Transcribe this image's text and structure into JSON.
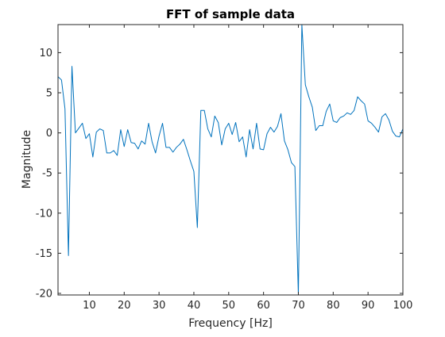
{
  "chart_data": {
    "type": "line",
    "title": "FFT of sample data",
    "xlabel": "Frequency [Hz]",
    "ylabel": "Magnitude",
    "xlim": [
      1,
      100
    ],
    "ylim": [
      -20.2,
      13.5
    ],
    "xticks": [
      10,
      20,
      30,
      40,
      50,
      60,
      70,
      80,
      90,
      100
    ],
    "yticks": [
      10,
      5,
      0,
      -5,
      -10,
      -15,
      -20
    ],
    "grid": false,
    "line_color": "#0072bd",
    "series": [
      {
        "x": [
          1,
          2,
          3,
          4,
          5,
          6,
          7,
          8,
          9,
          10,
          11,
          12,
          13,
          14,
          15,
          16,
          17,
          18,
          19,
          20,
          21,
          22,
          23,
          24,
          25,
          26,
          27,
          28,
          29,
          30,
          31,
          32,
          33,
          34,
          35,
          36,
          37,
          38,
          39,
          40,
          41,
          42,
          43,
          44,
          45,
          46,
          47,
          48,
          49,
          50,
          51,
          52,
          53,
          54,
          55,
          56,
          57,
          58,
          59,
          60,
          61,
          62,
          63,
          64,
          65,
          66,
          67,
          68,
          69,
          70,
          71,
          72,
          73,
          74,
          75,
          76,
          77,
          78,
          79,
          80,
          81,
          82,
          83,
          84,
          85,
          86,
          87,
          88,
          89,
          90,
          91,
          92,
          93,
          94,
          95,
          96,
          97,
          98,
          99,
          100
        ],
        "values": [
          7.0,
          6.6,
          3.0,
          -15.3,
          8.3,
          0.0,
          0.6,
          1.2,
          -0.7,
          -0.1,
          -3.0,
          0.1,
          0.5,
          0.3,
          -2.5,
          -2.5,
          -2.2,
          -2.8,
          0.4,
          -1.7,
          0.4,
          -1.2,
          -1.3,
          -2.0,
          -1.0,
          -1.4,
          1.2,
          -1.1,
          -2.5,
          -0.4,
          1.2,
          -1.8,
          -1.8,
          -2.4,
          -1.8,
          -1.4,
          -0.8,
          -2.1,
          -3.5,
          -4.8,
          -11.8,
          2.8,
          2.8,
          0.5,
          -0.5,
          2.1,
          1.3,
          -1.5,
          0.5,
          1.2,
          -0.2,
          1.3,
          -1.1,
          -0.5,
          -3.0,
          0.4,
          -2.0,
          1.2,
          -2.0,
          -2.1,
          -0.1,
          0.7,
          0.1,
          0.8,
          2.4,
          -1.0,
          -2.1,
          -3.7,
          -4.2,
          -20.2,
          13.5,
          6.0,
          4.5,
          3.2,
          0.3,
          0.9,
          0.9,
          2.7,
          3.6,
          1.5,
          1.3,
          1.9,
          2.1,
          2.5,
          2.3,
          2.8,
          4.5,
          4.0,
          3.6,
          1.5,
          1.2,
          0.7,
          0.1,
          2.0,
          2.4,
          1.6,
          0.2,
          -0.4,
          -0.5,
          0.5
        ]
      }
    ]
  }
}
